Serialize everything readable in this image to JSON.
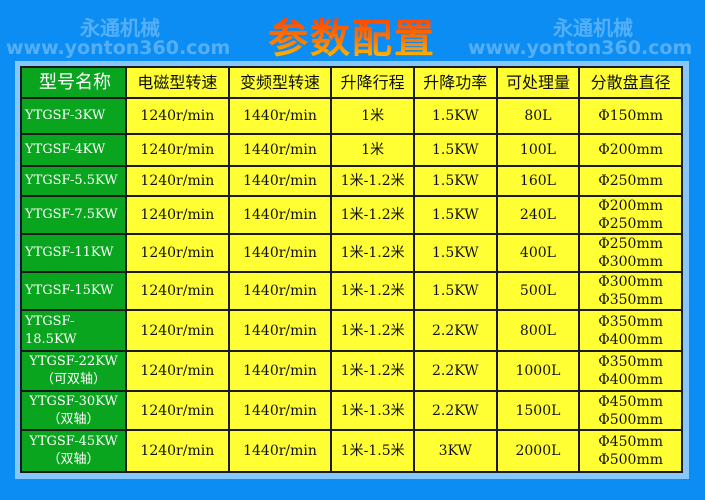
{
  "watermark": {
    "brand": "永通机械",
    "url": "www.yonton360.com"
  },
  "title": "参数配置",
  "table": {
    "headers": [
      "型号名称",
      "电磁型转速",
      "变频型转速",
      "升降行程",
      "升降功率",
      "可处理量",
      "分散盘直径"
    ],
    "rows": [
      {
        "model": [
          "YTGSF-3KW"
        ],
        "em": "1240r/min",
        "vf": "1440r/min",
        "stroke": "1米",
        "power": "1.5KW",
        "capacity": "80L",
        "disc": [
          "Φ150mm"
        ]
      },
      {
        "model": [
          "YTGSF-4KW"
        ],
        "em": "1240r/min",
        "vf": "1440r/min",
        "stroke": "1米",
        "power": "1.5KW",
        "capacity": "100L",
        "disc": [
          "Φ200mm"
        ]
      },
      {
        "model": [
          "YTGSF-5.5KW"
        ],
        "em": "1240r/min",
        "vf": "1440r/min",
        "stroke": "1米-1.2米",
        "power": "1.5KW",
        "capacity": "160L",
        "disc": [
          "Φ250mm"
        ]
      },
      {
        "model": [
          "YTGSF-7.5KW"
        ],
        "em": "1240r/min",
        "vf": "1440r/min",
        "stroke": "1米-1.2米",
        "power": "1.5KW",
        "capacity": "240L",
        "disc": [
          "Φ200mm",
          "Φ250mm"
        ]
      },
      {
        "model": [
          "YTGSF-11KW"
        ],
        "em": "1240r/min",
        "vf": "1440r/min",
        "stroke": "1米-1.2米",
        "power": "1.5KW",
        "capacity": "400L",
        "disc": [
          "Φ250mm",
          "Φ300mm"
        ]
      },
      {
        "model": [
          "YTGSF-15KW"
        ],
        "em": "1240r/min",
        "vf": "1440r/min",
        "stroke": "1米-1.2米",
        "power": "1.5KW",
        "capacity": "500L",
        "disc": [
          "Φ300mm",
          "Φ350mm"
        ]
      },
      {
        "model": [
          "YTGSF-18.5KW"
        ],
        "em": "1240r/min",
        "vf": "1440r/min",
        "stroke": "1米-1.2米",
        "power": "2.2KW",
        "capacity": "800L",
        "disc": [
          "Φ350mm",
          "Φ400mm"
        ]
      },
      {
        "model": [
          "YTGSF-22KW",
          "（可双轴）"
        ],
        "em": "1240r/min",
        "vf": "1440r/min",
        "stroke": "1米-1.2米",
        "power": "2.2KW",
        "capacity": "1000L",
        "disc": [
          "Φ350mm",
          "Φ400mm"
        ]
      },
      {
        "model": [
          "YTGSF-30KW",
          "（双轴）"
        ],
        "em": "1240r/min",
        "vf": "1440r/min",
        "stroke": "1米-1.3米",
        "power": "2.2KW",
        "capacity": "1500L",
        "disc": [
          "Φ450mm",
          "Φ500mm"
        ]
      },
      {
        "model": [
          "YTGSF-45KW",
          "（双轴）"
        ],
        "em": "1240r/min",
        "vf": "1440r/min",
        "stroke": "1米-1.5米",
        "power": "3KW",
        "capacity": "2000L",
        "disc": [
          "Φ450mm",
          "Φ500mm"
        ]
      }
    ]
  },
  "colors": {
    "background": "#0b8df4",
    "model_cell": "#0aa51e",
    "data_cell": "#ffff33"
  }
}
